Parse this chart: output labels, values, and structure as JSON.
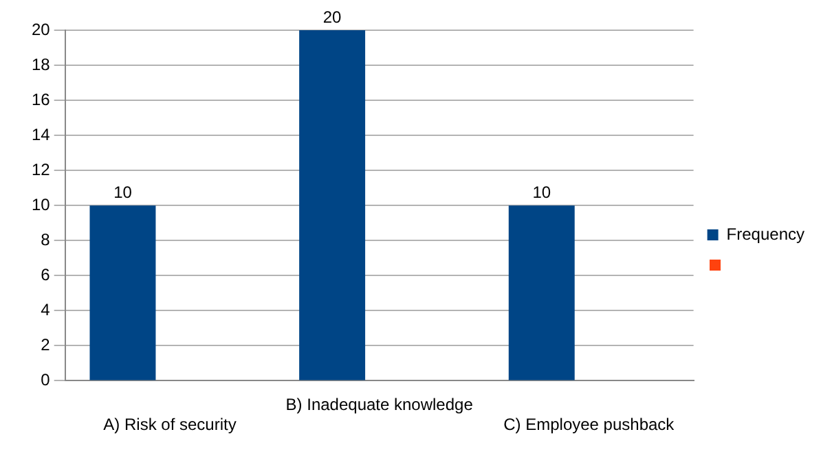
{
  "chart_data": {
    "type": "bar",
    "categories": [
      "A) Risk of security",
      "B) Inadequate knowledge",
      "C) Employee pushback"
    ],
    "series": [
      {
        "name": "Frequency",
        "color": "#004586",
        "values": [
          10,
          20,
          10
        ]
      },
      {
        "color": "#ff420e",
        "values": [
          null,
          null,
          null
        ]
      }
    ],
    "ylim": [
      0,
      20
    ],
    "yticks": [
      0,
      2,
      4,
      6,
      8,
      10,
      12,
      14,
      16,
      18,
      20
    ],
    "grid": "y",
    "legend": "right",
    "data_labels": true
  }
}
